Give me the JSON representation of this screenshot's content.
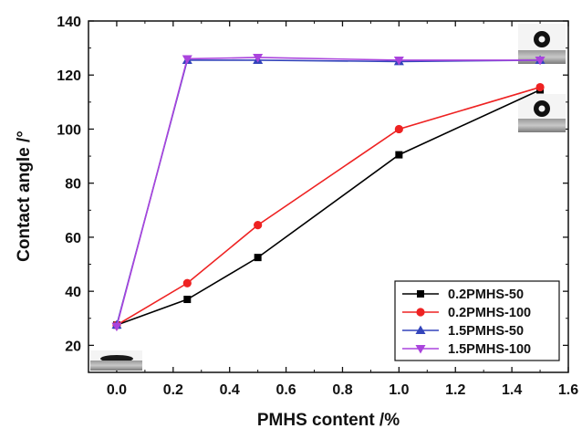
{
  "chart_data": {
    "type": "line",
    "xlabel": "PMHS content /%",
    "ylabel": "Contact angle /°",
    "xlim": [
      -0.1,
      1.6
    ],
    "ylim": [
      10,
      140
    ],
    "x_ticks": [
      0.0,
      0.2,
      0.4,
      0.6,
      0.8,
      1.0,
      1.2,
      1.4,
      1.6
    ],
    "x_tick_labels": [
      "0.0",
      "0.2",
      "0.4",
      "0.6",
      "0.8",
      "1.0",
      "1.2",
      "1.4",
      "1.6"
    ],
    "y_ticks": [
      20,
      40,
      60,
      80,
      100,
      120,
      140
    ],
    "y_tick_labels": [
      "20",
      "40",
      "60",
      "80",
      "100",
      "120",
      "140"
    ],
    "grid": false,
    "legend_position": "bottom-right",
    "series": [
      {
        "name": "0.2PMHS-50",
        "color": "#000000",
        "marker": "square",
        "x": [
          0.0,
          0.25,
          0.5,
          1.0,
          1.5
        ],
        "y": [
          27.5,
          37,
          52.5,
          90.5,
          114.5
        ]
      },
      {
        "name": "0.2PMHS-100",
        "color": "#ee2222",
        "marker": "circle",
        "x": [
          0.0,
          0.25,
          0.5,
          1.0,
          1.5
        ],
        "y": [
          27.5,
          43,
          64.5,
          100,
          115.5
        ]
      },
      {
        "name": "1.5PMHS-50",
        "color": "#3344bb",
        "marker": "triangle-up",
        "x": [
          0.0,
          0.25,
          0.5,
          1.0,
          1.5
        ],
        "y": [
          27.5,
          125.5,
          125.5,
          125,
          125.5
        ]
      },
      {
        "name": "1.5PMHS-100",
        "color": "#aa44dd",
        "marker": "triangle-down",
        "x": [
          0.0,
          0.25,
          0.5,
          1.0,
          1.5
        ],
        "y": [
          27,
          126,
          126.5,
          125.5,
          125.5
        ]
      }
    ],
    "insets": [
      {
        "name": "flat-droplet-photo",
        "near": "bottom-left"
      },
      {
        "name": "sessile-droplet-photo-upper",
        "near": "top-right"
      },
      {
        "name": "sessile-droplet-photo-lower",
        "near": "right"
      }
    ]
  }
}
